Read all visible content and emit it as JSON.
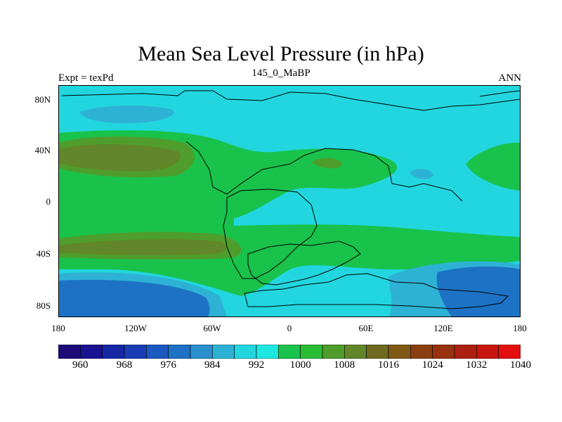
{
  "title": "Mean Sea Level Pressure (in hPa)",
  "subtitle_left": "Expt = texPd",
  "subtitle_center": "145_0_MaBP",
  "subtitle_right": "ANN",
  "lat_labels": [
    "80N",
    "40N",
    "0",
    "40S",
    "80S"
  ],
  "lon_labels": [
    "180",
    "120W",
    "60W",
    "0",
    "60E",
    "120E",
    "180"
  ],
  "colorbar": {
    "labels": [
      "960",
      "968",
      "976",
      "984",
      "992",
      "1000",
      "1008",
      "1016",
      "1024",
      "1032",
      "1040"
    ],
    "colors": [
      "#1d0a78",
      "#1b1291",
      "#1627a6",
      "#1a3cb4",
      "#1b58bf",
      "#1d72c5",
      "#2a8fcc",
      "#2db2d5",
      "#22d6df",
      "#1ee7e1",
      "#19c24b",
      "#2bbc36",
      "#4f9d2c",
      "#62862a",
      "#6e6a1f",
      "#7f5a16",
      "#8b3f10",
      "#99300e",
      "#ad2010",
      "#c8160f",
      "#e4100f"
    ]
  },
  "map_colors": {
    "band_1000_992": "#22d6df",
    "band_992_984": "#2db2d5",
    "band_984_976": "#1d72c5",
    "band_1008_1000": "#19c24b",
    "band_1016_1008": "#4f9d2c",
    "band_1024_1016": "#62862a",
    "coastline": "#000000"
  }
}
